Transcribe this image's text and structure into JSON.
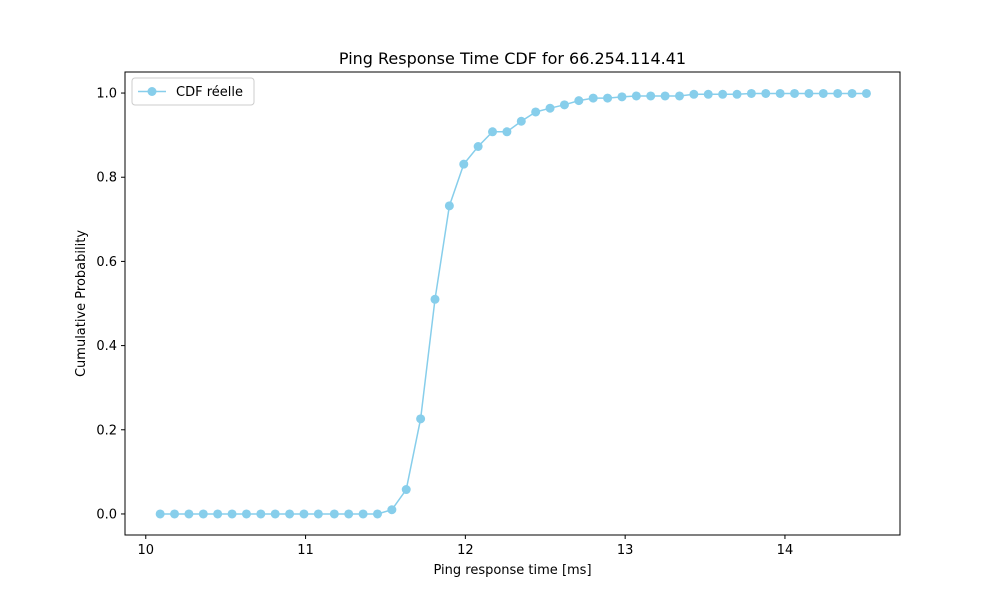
{
  "chart_data": {
    "type": "line",
    "title": "Ping Response Time CDF for 66.254.114.41",
    "xlabel": "Ping response time [ms]",
    "ylabel": "Cumulative Probability",
    "xlim": [
      9.87,
      14.72
    ],
    "ylim": [
      -0.05,
      1.05
    ],
    "xticks": [
      10,
      11,
      12,
      13,
      14
    ],
    "xtick_labels": [
      "10",
      "11",
      "12",
      "13",
      "14"
    ],
    "yticks": [
      0.0,
      0.2,
      0.4,
      0.6,
      0.8,
      1.0
    ],
    "ytick_labels": [
      "0.0",
      "0.2",
      "0.4",
      "0.6",
      "0.8",
      "1.0"
    ],
    "grid": false,
    "legend_position": "upper-left",
    "series": [
      {
        "name": "CDF réelle",
        "color": "#87ceeb",
        "marker": "circle",
        "x": [
          10.09,
          10.18,
          10.27,
          10.36,
          10.45,
          10.54,
          10.63,
          10.72,
          10.81,
          10.9,
          10.99,
          11.08,
          11.18,
          11.27,
          11.36,
          11.45,
          11.54,
          11.63,
          11.72,
          11.81,
          11.9,
          11.99,
          12.08,
          12.17,
          12.26,
          12.35,
          12.44,
          12.53,
          12.62,
          12.71,
          12.8,
          12.89,
          12.98,
          13.07,
          13.16,
          13.25,
          13.34,
          13.43,
          13.52,
          13.61,
          13.7,
          13.79,
          13.88,
          13.97,
          14.06,
          14.15,
          14.24,
          14.33,
          14.42,
          14.51
        ],
        "y": [
          0.0,
          0.0,
          0.0,
          0.0,
          0.0,
          0.0,
          0.0,
          0.0,
          0.0,
          0.0,
          0.0,
          0.0,
          0.0,
          0.0,
          0.0,
          0.0,
          0.01,
          0.058,
          0.226,
          0.51,
          0.732,
          0.831,
          0.873,
          0.908,
          0.908,
          0.933,
          0.955,
          0.964,
          0.972,
          0.982,
          0.988,
          0.988,
          0.991,
          0.993,
          0.993,
          0.993,
          0.993,
          0.997,
          0.997,
          0.997,
          0.997,
          0.999,
          0.999,
          0.999,
          0.999,
          0.999,
          0.999,
          0.999,
          0.999,
          0.999
        ]
      }
    ]
  }
}
